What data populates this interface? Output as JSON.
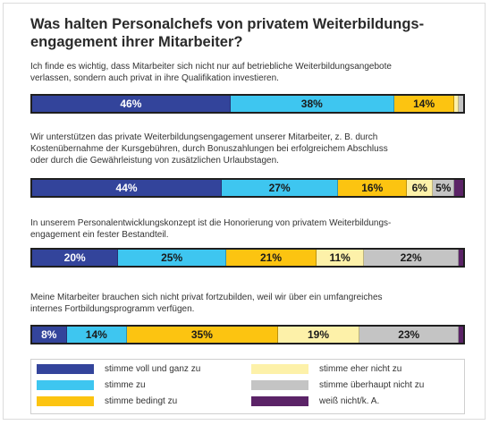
{
  "title": "Was halten Personalchefs von privatem Weiterbildungs-engagement ihrer Mitarbeiter?",
  "title_lines": [
    "Was halten Personalchefs von privatem Weiterbildungs-",
    "engagement ihrer Mitarbeiter?"
  ],
  "colors": {
    "stimme voll und ganz zu": "#33449b",
    "stimme zu": "#3ec6f0",
    "stimme bedingt zu": "#fcc411",
    "stimme eher nicht zu": "#fdf1a9",
    "stimme überhaupt nicht zu": "#c4c4c4",
    "weiß nicht/k. A.": "#5b2367"
  },
  "chart_data": {
    "type": "bar",
    "orientation": "horizontal",
    "stacked": true,
    "title": "Was halten Personalchefs von privatem Weiterbildungs-engagement ihrer Mitarbeiter?",
    "legend_position": "bottom",
    "series_names": [
      "stimme voll und ganz zu",
      "stimme zu",
      "stimme bedingt zu",
      "stimme eher nicht zu",
      "stimme überhaupt nicht zu",
      "weiß nicht/k. A."
    ],
    "questions": [
      {
        "text_lines": [
          "Ich finde es wichtig, dass Mitarbeiter sich nicht nur auf betriebliche Weiterbildungsangebote",
          "verlassen, sondern auch privat in ihre Qualifikation investieren."
        ],
        "values": [
          46,
          38,
          14,
          1,
          1,
          0
        ],
        "labels": [
          "46%",
          "38%",
          "14%",
          "",
          "",
          ""
        ]
      },
      {
        "text_lines": [
          "Wir unterstützen das private Weiterbildungsengagement unserer Mitarbeiter, z. B. durch",
          "Kostenübernahme der Kursgebühren, durch Bonuszahlungen bei erfolgreichem Abschluss",
          "oder durch die Gewährleistung von zusätzlichen Urlaubstagen."
        ],
        "values": [
          44,
          27,
          16,
          6,
          5,
          2
        ],
        "labels": [
          "44%",
          "27%",
          "16%",
          "6%",
          "5%",
          ""
        ]
      },
      {
        "text_lines": [
          "In unserem Personalentwicklungskonzept ist die Honorierung von privatem Weiterbildungs-",
          "engagement ein fester Bestandteil."
        ],
        "values": [
          20,
          25,
          21,
          11,
          22,
          1
        ],
        "labels": [
          "20%",
          "25%",
          "21%",
          "11%",
          "22%",
          ""
        ]
      },
      {
        "text_lines": [
          "Meine Mitarbeiter brauchen sich nicht privat fortzubilden, weil wir über ein umfangreiches",
          "internes Fortbildungsprogramm verfügen."
        ],
        "values": [
          8,
          14,
          35,
          19,
          23,
          1
        ],
        "labels": [
          "8%",
          "14%",
          "35%",
          "19%",
          "23%",
          ""
        ]
      }
    ]
  }
}
